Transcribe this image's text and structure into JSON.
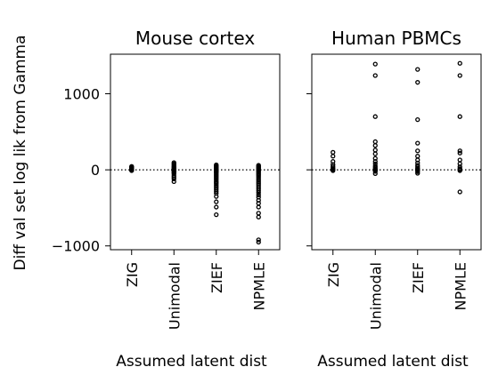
{
  "chart_data": {
    "type": "scatter",
    "ylabel": "Diff val set log lik from Gamma",
    "xlabel": "Assumed latent dist",
    "categories": [
      "ZIG",
      "Unimodal",
      "ZIEF",
      "NPMLE"
    ],
    "ylim": [
      -1050,
      1520
    ],
    "yticks": [
      -1000,
      0,
      1000
    ],
    "shared_y": true,
    "reference_line": {
      "y": 0,
      "style": "dotted"
    },
    "panels": [
      {
        "title": "Mouse cortex",
        "series": [
          {
            "category": "ZIG",
            "values": [
              0,
              3,
              6,
              9,
              12,
              15,
              18,
              21,
              25,
              30,
              35,
              40,
              45,
              -3,
              -6,
              -10
            ]
          },
          {
            "category": "Unimodal",
            "values": [
              95,
              80,
              65,
              50,
              40,
              30,
              22,
              15,
              10,
              5,
              0,
              -5,
              -10,
              -15,
              -20,
              -25,
              -30,
              -40,
              -55,
              -80,
              -100,
              -120,
              -155
            ]
          },
          {
            "category": "ZIEF",
            "values": [
              65,
              55,
              45,
              35,
              25,
              15,
              5,
              0,
              -5,
              -12,
              -20,
              -30,
              -40,
              -55,
              -70,
              -85,
              -100,
              -115,
              -130,
              -150,
              -165,
              -180,
              -200,
              -220,
              -240,
              -260,
              -285,
              -310,
              -350,
              -420,
              -490,
              -590
            ]
          },
          {
            "category": "NPMLE",
            "values": [
              60,
              50,
              40,
              30,
              20,
              10,
              0,
              -10,
              -20,
              -35,
              -50,
              -65,
              -80,
              -100,
              -120,
              -140,
              -160,
              -180,
              -200,
              -225,
              -250,
              -275,
              -300,
              -330,
              -360,
              -400,
              -440,
              -490,
              -570,
              -620,
              -920,
              -950
            ]
          }
        ]
      },
      {
        "title": "Human PBMCs",
        "series": [
          {
            "category": "ZIG",
            "values": [
              230,
              180,
              110,
              70,
              45,
              25,
              10,
              0,
              -10
            ]
          },
          {
            "category": "Unimodal",
            "values": [
              1390,
              1240,
              700,
              370,
              320,
              260,
              210,
              150,
              110,
              80,
              50,
              30,
              15,
              5,
              0,
              -10,
              -20,
              -50
            ]
          },
          {
            "category": "ZIEF",
            "values": [
              1320,
              1150,
              660,
              350,
              250,
              180,
              130,
              90,
              60,
              40,
              20,
              10,
              0,
              -10,
              -25,
              -45
            ]
          },
          {
            "category": "NPMLE",
            "values": [
              1400,
              1240,
              700,
              250,
              220,
              130,
              80,
              40,
              15,
              5,
              0,
              -10,
              -290
            ]
          }
        ]
      }
    ]
  }
}
